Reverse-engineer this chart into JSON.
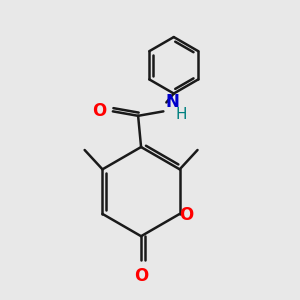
{
  "bg_color": "#e8e8e8",
  "bond_color": "#1a1a1a",
  "oxygen_color": "#ff0000",
  "nitrogen_color": "#0000cc",
  "hydrogen_color": "#008080",
  "line_width": 1.8,
  "fig_size": [
    3.0,
    3.0
  ],
  "dpi": 100,
  "xlim": [
    0,
    10
  ],
  "ylim": [
    0,
    10
  ]
}
